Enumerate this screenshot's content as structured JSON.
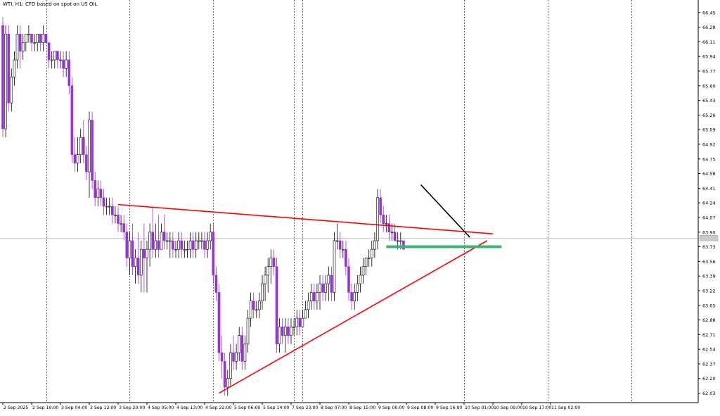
{
  "chart_data": {
    "type": "candlestick",
    "title": "WTI, H1:  CFD based on spot on US OIL",
    "colors": {
      "bull_fill": "#ffffff",
      "bull_border": "#000000",
      "bear_fill": "#9b30d9",
      "bear_border": "#9b30d9",
      "grid": "#000000",
      "trendline_red": "#ff0000",
      "trendline_black": "#000000",
      "support_green": "#3cb371",
      "price_line": "#c0c0c0"
    },
    "y_axis": {
      "ylim": [
        61.92,
        66.53
      ],
      "ticks": [
        "66.45",
        "66.28",
        "66.11",
        "65.94",
        "65.77",
        "65.60",
        "65.43",
        "65.26",
        "65.09",
        "64.92",
        "64.75",
        "64.58",
        "64.41",
        "64.24",
        "64.07",
        "63.90",
        "63.73",
        "63.56",
        "63.39",
        "63.22",
        "63.05",
        "62.88",
        "62.71",
        "62.54",
        "62.37",
        "62.20",
        "62.03"
      ]
    },
    "x_axis": {
      "ticks": [
        "2 Sep 2025",
        "2 Sep 19:00",
        "3 Sep 04:00",
        "3 Sep 12:00",
        "3 Sep 20:00",
        "4 Sep 05:00",
        "4 Sep 13:00",
        "4 Sep 22:00",
        "5 Sep 06:00",
        "5 Sep 14:00",
        "7 Sep 23:00",
        "8 Sep 07:00",
        "8 Sep 15:00",
        "9 Sep 00:00",
        "9 Sep 08:00",
        "9 Sep 16:00",
        "10 Sep 01:00",
        "10 Sep 09:00",
        "10 Sep 17:00",
        "11 Sep 02:00"
      ],
      "tick_index": [
        0,
        10,
        20,
        30,
        40,
        50,
        60,
        70,
        80,
        90,
        100,
        110,
        120,
        130,
        140,
        150,
        160,
        170,
        180,
        190
      ]
    },
    "session_breaks": [
      15,
      44,
      73,
      101,
      104,
      160,
      189,
      218
    ],
    "current_price": 63.83,
    "candles": [
      [
        66.3,
        66.4,
        65.0,
        65.1
      ],
      [
        65.1,
        66.3,
        65.0,
        66.2
      ],
      [
        66.2,
        66.3,
        65.3,
        65.4
      ],
      [
        65.4,
        65.8,
        65.3,
        65.7
      ],
      [
        65.7,
        66.0,
        65.6,
        65.9
      ],
      [
        65.9,
        66.3,
        65.8,
        66.2
      ],
      [
        66.2,
        66.3,
        65.8,
        66.0
      ],
      [
        66.0,
        66.2,
        65.9,
        66.1
      ],
      [
        66.1,
        66.2,
        66.0,
        66.2
      ],
      [
        66.2,
        66.3,
        66.1,
        66.2
      ],
      [
        66.2,
        66.2,
        66.0,
        66.1
      ],
      [
        66.1,
        66.2,
        66.0,
        66.1
      ],
      [
        66.1,
        66.2,
        66.0,
        66.2
      ],
      [
        66.2,
        66.2,
        66.0,
        66.1
      ],
      [
        66.1,
        66.3,
        66.0,
        66.2
      ],
      [
        66.2,
        66.2,
        66.1,
        66.1
      ],
      [
        66.1,
        66.1,
        65.8,
        65.9
      ],
      [
        65.9,
        66.0,
        65.8,
        65.9
      ],
      [
        65.9,
        66.0,
        65.8,
        66.0
      ],
      [
        66.0,
        66.0,
        65.8,
        65.9
      ],
      [
        65.9,
        66.0,
        65.8,
        65.9
      ],
      [
        65.9,
        66.0,
        65.7,
        65.8
      ],
      [
        65.8,
        66.0,
        65.7,
        65.9
      ],
      [
        65.9,
        66.0,
        65.5,
        65.6
      ],
      [
        65.6,
        65.7,
        64.7,
        64.8
      ],
      [
        64.8,
        65.0,
        64.6,
        64.7
      ],
      [
        64.7,
        65.0,
        64.6,
        64.8
      ],
      [
        64.8,
        65.1,
        64.7,
        65.0
      ],
      [
        65.0,
        65.2,
        64.7,
        64.8
      ],
      [
        64.8,
        64.9,
        64.5,
        64.6
      ],
      [
        64.6,
        65.3,
        64.3,
        65.2
      ],
      [
        65.2,
        65.3,
        64.4,
        64.5
      ],
      [
        64.5,
        64.6,
        64.2,
        64.3
      ],
      [
        64.3,
        64.5,
        64.2,
        64.4
      ],
      [
        64.4,
        64.5,
        64.2,
        64.3
      ],
      [
        64.3,
        64.4,
        64.1,
        64.2
      ],
      [
        64.2,
        64.3,
        64.1,
        64.2
      ],
      [
        64.2,
        64.3,
        64.1,
        64.2
      ],
      [
        64.2,
        64.3,
        64.0,
        64.1
      ],
      [
        64.1,
        64.2,
        64.0,
        64.1
      ],
      [
        64.1,
        64.2,
        63.9,
        64.0
      ],
      [
        64.0,
        64.1,
        63.9,
        64.0
      ],
      [
        64.0,
        64.1,
        63.8,
        63.9
      ],
      [
        63.9,
        64.0,
        63.5,
        63.6
      ],
      [
        63.6,
        63.9,
        63.4,
        63.8
      ],
      [
        63.8,
        64.0,
        63.4,
        63.5
      ],
      [
        63.5,
        63.7,
        63.3,
        63.6
      ],
      [
        63.6,
        63.9,
        63.3,
        63.4
      ],
      [
        63.4,
        63.8,
        63.2,
        63.7
      ],
      [
        63.7,
        64.0,
        63.2,
        63.6
      ],
      [
        63.6,
        63.8,
        63.2,
        63.7
      ],
      [
        63.7,
        64.0,
        63.5,
        63.9
      ],
      [
        63.9,
        64.2,
        63.6,
        63.7
      ],
      [
        63.7,
        64.0,
        63.6,
        63.8
      ],
      [
        63.8,
        64.1,
        63.6,
        63.7
      ],
      [
        63.7,
        64.0,
        63.7,
        63.9
      ],
      [
        63.9,
        64.1,
        63.7,
        63.8
      ],
      [
        63.8,
        63.9,
        63.7,
        63.8
      ],
      [
        63.8,
        63.9,
        63.6,
        63.8
      ],
      [
        63.8,
        63.9,
        63.6,
        63.7
      ],
      [
        63.7,
        63.8,
        63.6,
        63.7
      ],
      [
        63.7,
        63.9,
        63.6,
        63.8
      ],
      [
        63.8,
        63.9,
        63.6,
        63.7
      ],
      [
        63.7,
        63.8,
        63.6,
        63.7
      ],
      [
        63.7,
        63.8,
        63.6,
        63.7
      ],
      [
        63.7,
        63.9,
        63.6,
        63.8
      ],
      [
        63.8,
        63.9,
        63.6,
        63.7
      ],
      [
        63.7,
        63.9,
        63.6,
        63.8
      ],
      [
        63.8,
        63.9,
        63.7,
        63.8
      ],
      [
        63.8,
        63.9,
        63.7,
        63.8
      ],
      [
        63.8,
        63.9,
        63.6,
        63.7
      ],
      [
        63.7,
        63.9,
        63.6,
        63.8
      ],
      [
        63.8,
        64.0,
        63.7,
        63.9
      ],
      [
        63.9,
        64.0,
        63.3,
        63.4
      ],
      [
        63.4,
        63.5,
        63.1,
        63.2
      ],
      [
        63.2,
        63.3,
        62.4,
        62.5
      ],
      [
        62.5,
        62.7,
        62.2,
        62.4
      ],
      [
        62.4,
        62.5,
        62.0,
        62.1
      ],
      [
        62.1,
        62.3,
        62.0,
        62.2
      ],
      [
        62.2,
        62.6,
        62.1,
        62.5
      ],
      [
        62.5,
        62.7,
        62.3,
        62.4
      ],
      [
        62.4,
        62.6,
        62.3,
        62.5
      ],
      [
        62.5,
        62.8,
        62.4,
        62.7
      ],
      [
        62.7,
        62.8,
        62.3,
        62.4
      ],
      [
        62.4,
        62.7,
        62.3,
        62.6
      ],
      [
        62.6,
        63.0,
        62.5,
        62.9
      ],
      [
        62.9,
        63.2,
        62.8,
        63.1
      ],
      [
        63.1,
        63.2,
        62.9,
        63.0
      ],
      [
        63.0,
        63.1,
        62.9,
        63.0
      ],
      [
        63.0,
        63.2,
        62.9,
        63.1
      ],
      [
        63.1,
        63.4,
        63.0,
        63.3
      ],
      [
        63.3,
        63.5,
        63.1,
        63.4
      ],
      [
        63.4,
        63.6,
        63.2,
        63.5
      ],
      [
        63.5,
        63.7,
        63.3,
        63.6
      ],
      [
        63.6,
        63.7,
        63.4,
        63.5
      ],
      [
        63.5,
        63.6,
        62.5,
        62.6
      ],
      [
        62.6,
        62.9,
        62.5,
        62.8
      ],
      [
        62.8,
        62.9,
        62.6,
        62.7
      ],
      [
        62.7,
        62.9,
        62.5,
        62.8
      ],
      [
        62.8,
        62.9,
        62.6,
        62.7
      ],
      [
        62.7,
        62.9,
        62.6,
        62.8
      ],
      [
        62.8,
        62.9,
        62.7,
        62.8
      ],
      [
        62.8,
        63.0,
        62.7,
        62.9
      ],
      [
        62.9,
        63.0,
        62.7,
        62.8
      ],
      [
        62.8,
        63.0,
        62.8,
        62.9
      ],
      [
        62.9,
        63.1,
        62.9,
        63.0
      ],
      [
        63.0,
        63.2,
        62.9,
        63.1
      ],
      [
        63.1,
        63.3,
        63.0,
        63.2
      ],
      [
        63.2,
        63.3,
        63.0,
        63.1
      ],
      [
        63.1,
        63.3,
        63.0,
        63.2
      ],
      [
        63.2,
        63.4,
        63.0,
        63.3
      ],
      [
        63.3,
        63.4,
        63.1,
        63.2
      ],
      [
        63.2,
        63.4,
        63.1,
        63.3
      ],
      [
        63.3,
        63.5,
        63.1,
        63.4
      ],
      [
        63.4,
        63.5,
        63.1,
        63.2
      ],
      [
        63.2,
        63.9,
        63.1,
        63.8
      ],
      [
        63.8,
        64.0,
        63.7,
        63.8
      ],
      [
        63.8,
        63.9,
        63.6,
        63.7
      ],
      [
        63.7,
        63.8,
        63.6,
        63.7
      ],
      [
        63.7,
        63.8,
        63.4,
        63.5
      ],
      [
        63.5,
        63.6,
        63.1,
        63.2
      ],
      [
        63.2,
        63.3,
        63.0,
        63.1
      ],
      [
        63.1,
        63.3,
        63.0,
        63.2
      ],
      [
        63.2,
        63.4,
        63.1,
        63.3
      ],
      [
        63.3,
        63.5,
        63.2,
        63.4
      ],
      [
        63.4,
        63.6,
        63.3,
        63.5
      ],
      [
        63.5,
        63.6,
        63.4,
        63.6
      ],
      [
        63.6,
        63.7,
        63.5,
        63.6
      ],
      [
        63.6,
        63.8,
        63.5,
        63.7
      ],
      [
        63.7,
        63.9,
        63.6,
        63.8
      ],
      [
        63.8,
        64.4,
        63.7,
        64.3
      ],
      [
        64.3,
        64.4,
        64.0,
        64.1
      ],
      [
        64.1,
        64.2,
        63.9,
        64.0
      ],
      [
        64.0,
        64.1,
        63.9,
        64.0
      ],
      [
        64.0,
        64.1,
        63.8,
        63.9
      ],
      [
        63.9,
        64.0,
        63.8,
        63.9
      ],
      [
        63.9,
        64.0,
        63.8,
        63.8
      ],
      [
        63.8,
        63.9,
        63.7,
        63.8
      ],
      [
        63.8,
        63.9,
        63.7,
        63.8
      ],
      [
        63.8,
        63.8,
        63.7,
        63.7
      ]
    ],
    "trendlines": [
      {
        "color": "red",
        "from": [
          40,
          64.22
        ],
        "to": [
          170,
          63.88
        ]
      },
      {
        "color": "red",
        "from": [
          75,
          62.03
        ],
        "to": [
          168,
          63.8
        ]
      },
      {
        "color": "black",
        "from": [
          145,
          64.45
        ],
        "to": [
          162,
          63.84
        ]
      },
      {
        "color": "green",
        "from": [
          133,
          63.73
        ],
        "to": [
          173,
          63.73
        ]
      }
    ]
  }
}
